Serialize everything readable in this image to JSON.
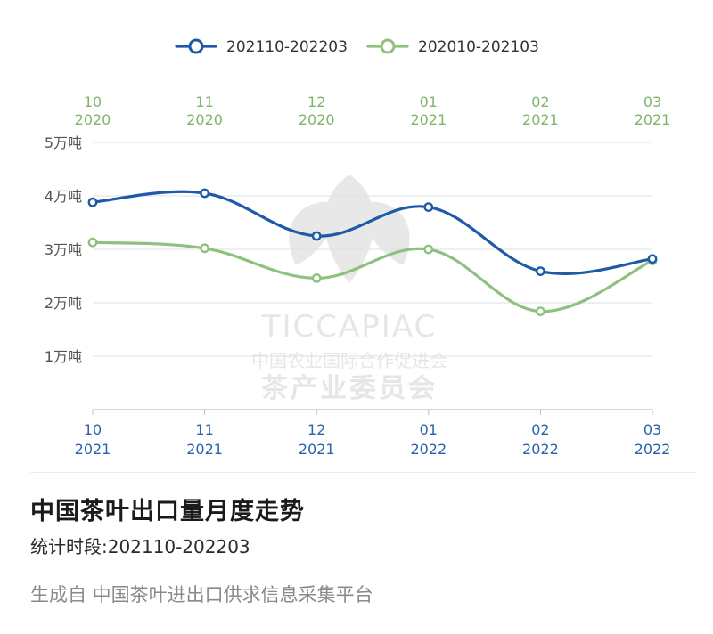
{
  "chart_data": {
    "type": "line",
    "y_unit": "万吨",
    "ylim": [
      0,
      5
    ],
    "y_ticks": [
      {
        "value": 1,
        "label": "1万吨"
      },
      {
        "value": 2,
        "label": "2万吨"
      },
      {
        "value": 3,
        "label": "3万吨"
      },
      {
        "value": 4,
        "label": "4万吨"
      },
      {
        "value": 5,
        "label": "5万吨"
      }
    ],
    "x_top": [
      {
        "month": "10",
        "year": "2020"
      },
      {
        "month": "11",
        "year": "2020"
      },
      {
        "month": "12",
        "year": "2020"
      },
      {
        "month": "01",
        "year": "2021"
      },
      {
        "month": "02",
        "year": "2021"
      },
      {
        "month": "03",
        "year": "2021"
      }
    ],
    "x_bottom": [
      {
        "month": "10",
        "year": "2021"
      },
      {
        "month": "11",
        "year": "2021"
      },
      {
        "month": "12",
        "year": "2021"
      },
      {
        "month": "01",
        "year": "2022"
      },
      {
        "month": "02",
        "year": "2022"
      },
      {
        "month": "03",
        "year": "2022"
      }
    ],
    "series": [
      {
        "name": "202110-202203",
        "color": "#1f5aa8",
        "values": [
          3.88,
          4.05,
          3.25,
          3.79,
          2.59,
          2.82
        ]
      },
      {
        "name": "202010-202103",
        "color": "#8fc17e",
        "values": [
          3.13,
          3.02,
          2.46,
          3.0,
          1.84,
          2.79
        ]
      }
    ],
    "grid": true,
    "legend": "top-center"
  },
  "watermark": {
    "title": "TICCAPIAC",
    "line1": "中国农业国际合作促进会",
    "line2": "茶产业委员会"
  },
  "footer": {
    "title": "中国茶叶出口量月度走势",
    "period": "统计时段:202110-202203",
    "source": "生成自 中国茶叶进出口供求信息采集平台"
  },
  "colors": {
    "top_axis": "#7fb56a",
    "bottom_axis": "#2a63ad",
    "y_axis_text": "#555555",
    "grid": "#dcdfe6"
  }
}
